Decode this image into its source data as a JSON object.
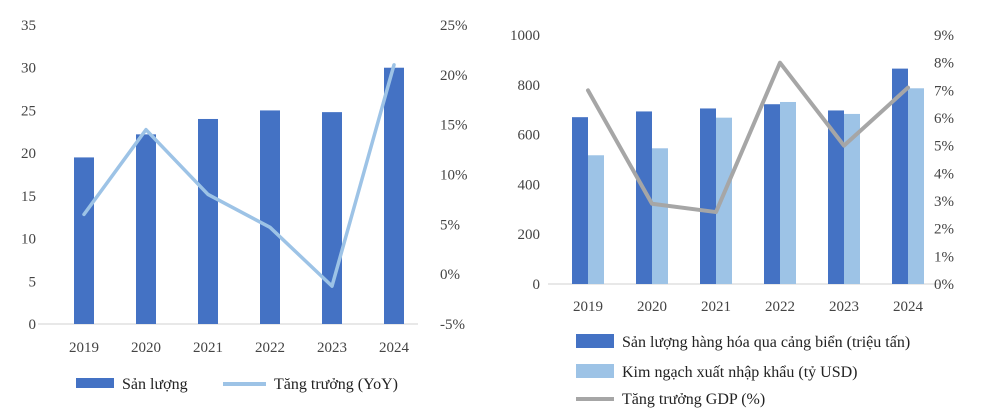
{
  "colors": {
    "bar_dark": "#4472C4",
    "bar_light": "#9DC3E6",
    "line_light": "#9DC3E6",
    "line_gray": "#A6A6A6",
    "axis_text": "#444444"
  },
  "chart_data": [
    {
      "type": "bar",
      "categories": [
        "2019",
        "2020",
        "2021",
        "2022",
        "2023",
        "2024"
      ],
      "series": [
        {
          "name": "Sản lượng",
          "kind": "bar",
          "axis": "left",
          "values": [
            19.5,
            22.2,
            24.0,
            25.0,
            24.8,
            30.0
          ]
        },
        {
          "name": "Tăng trưởng (YoY)",
          "kind": "line",
          "axis": "right",
          "values": [
            6.0,
            14.5,
            8.0,
            4.7,
            -1.2,
            21.0
          ]
        }
      ],
      "ylim": [
        0,
        35
      ],
      "yticks": [
        "0",
        "5",
        "10",
        "15",
        "20",
        "25",
        "30",
        "35"
      ],
      "y2lim": [
        -5,
        25
      ],
      "y2ticks": [
        "-5%",
        "0%",
        "5%",
        "10%",
        "15%",
        "20%",
        "25%"
      ],
      "grid": false,
      "legend": "bottom"
    },
    {
      "type": "bar",
      "categories": [
        "2019",
        "2020",
        "2021",
        "2022",
        "2023",
        "2024"
      ],
      "series": [
        {
          "name": "Sản lượng hàng hóa qua cảng biển (triệu tấn)",
          "kind": "bar",
          "axis": "left",
          "values": [
            670,
            693,
            705,
            722,
            697,
            865
          ]
        },
        {
          "name": "Kim ngạch xuất nhập khẩu (tỷ USD)",
          "kind": "bar",
          "axis": "left",
          "values": [
            517,
            545,
            668,
            731,
            683,
            786
          ]
        },
        {
          "name": "Tăng trưởng GDP (%)",
          "kind": "line",
          "axis": "right",
          "values": [
            7.0,
            2.9,
            2.6,
            8.0,
            5.0,
            7.1
          ]
        }
      ],
      "ylim": [
        0,
        1000
      ],
      "yticks": [
        "0",
        "200",
        "400",
        "600",
        "800",
        "1000"
      ],
      "y2lim": [
        0,
        9
      ],
      "y2ticks": [
        "0%",
        "1%",
        "2%",
        "3%",
        "4%",
        "5%",
        "6%",
        "7%",
        "8%",
        "9%"
      ],
      "grid": false,
      "legend": "bottom"
    }
  ]
}
